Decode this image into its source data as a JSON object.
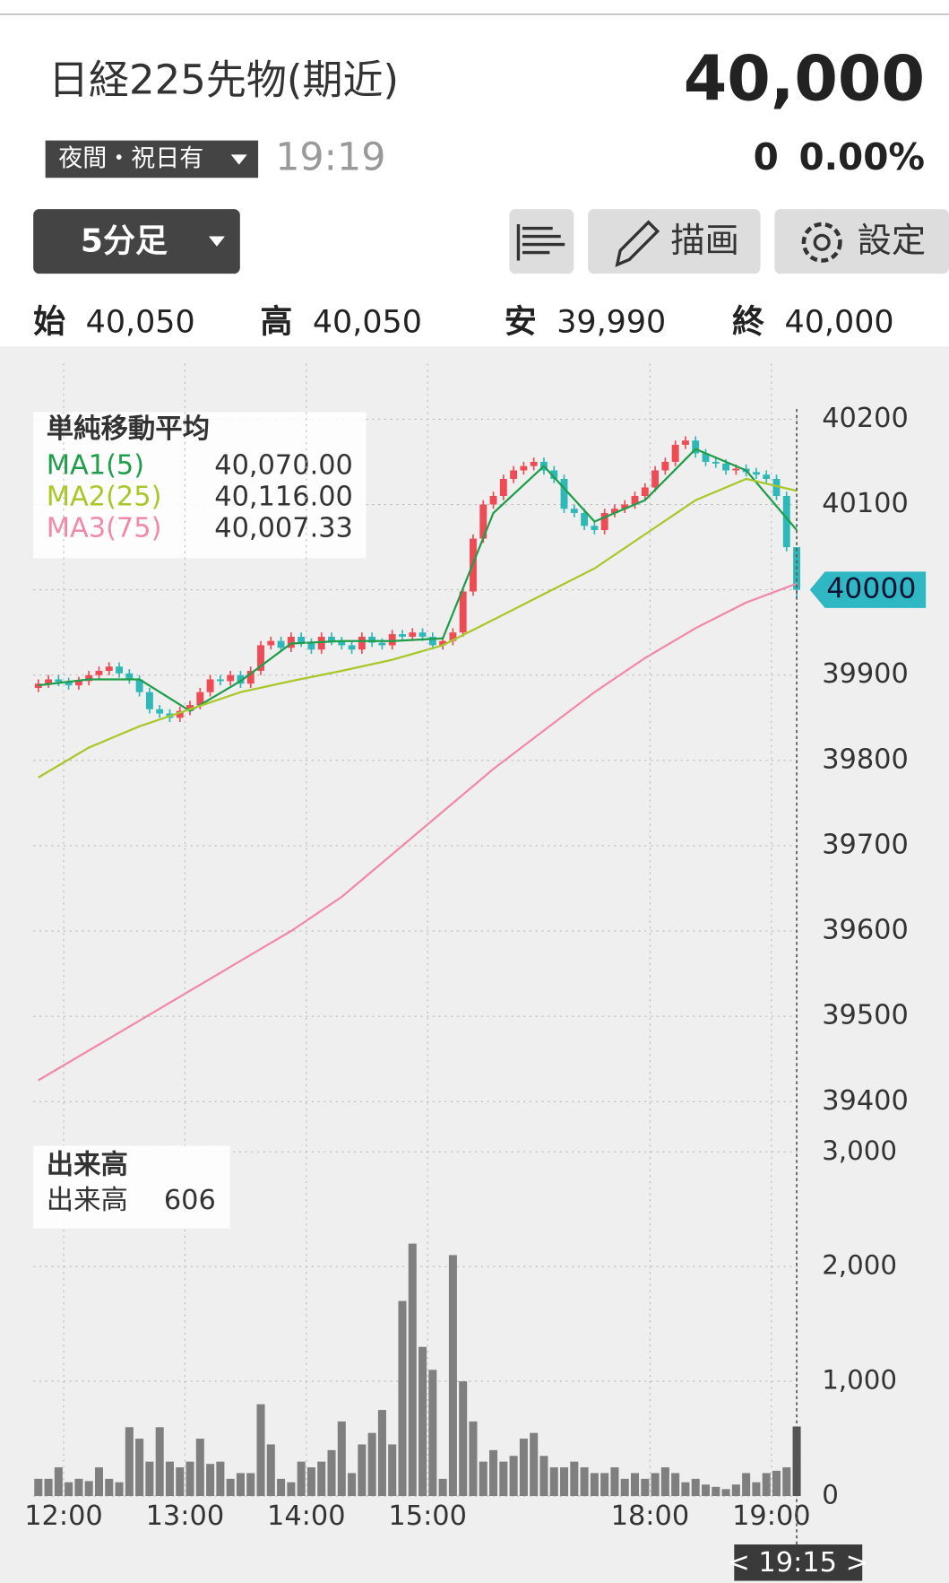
{
  "header": {
    "title": "日経225先物(期近)",
    "price": "40,000",
    "session": "夜間・祝日有",
    "time": "19:19",
    "change": "0",
    "change_pct": "0.00%",
    "interval": "5分足",
    "draw_button": "描画",
    "settings_button": "設定",
    "ohlc": [
      {
        "label": "始",
        "value": "40,050"
      },
      {
        "label": "高",
        "value": "40,050"
      },
      {
        "label": "安",
        "value": "39,990"
      },
      {
        "label": "終",
        "value": "40,000"
      }
    ]
  },
  "legend": {
    "title": "単純移動平均",
    "items": [
      "40,070.00",
      "40,116.00",
      "40,007.33"
    ]
  },
  "volume_legend": {
    "title": "出来高",
    "name": "出来高"
  },
  "cursor_label": "< 19:15 >",
  "chart_data": [
    {
      "type": "candlestick",
      "up_color": "#ee4b55",
      "down_color": "#2fb8b8",
      "open": [
        39885,
        39890,
        39895,
        39892,
        39888,
        39893,
        39900,
        39905,
        39910,
        39902,
        39895,
        39880,
        39860,
        39855,
        39850,
        39858,
        39865,
        39880,
        39895,
        39893,
        39900,
        39890,
        39905,
        39935,
        39940,
        39932,
        39945,
        39938,
        39930,
        39945,
        39940,
        39935,
        39930,
        39945,
        39938,
        39935,
        39948,
        39945,
        39950,
        39945,
        39935,
        39940,
        39950,
        39998,
        40060,
        40100,
        40110,
        40130,
        40140,
        40145,
        40150,
        40140,
        40130,
        40095,
        40090,
        40075,
        40070,
        40090,
        40095,
        40100,
        40110,
        40120,
        40140,
        40150,
        40170,
        40175,
        40160,
        40150,
        40148,
        40140,
        40142,
        40138,
        40135,
        40130,
        40110,
        40050
      ],
      "high": [
        39895,
        39900,
        39900,
        39897,
        39898,
        39905,
        39910,
        39915,
        39915,
        39907,
        39900,
        39885,
        39865,
        39860,
        39863,
        39870,
        39885,
        39900,
        39900,
        39905,
        39905,
        39910,
        39940,
        39945,
        39945,
        39950,
        39950,
        39943,
        39950,
        39950,
        39945,
        39940,
        39950,
        39950,
        39943,
        39953,
        39953,
        39955,
        39955,
        39950,
        39945,
        39955,
        40003,
        40065,
        40105,
        40115,
        40135,
        40145,
        40150,
        40155,
        40155,
        40145,
        40135,
        40100,
        40095,
        40080,
        40095,
        40100,
        40105,
        40115,
        40125,
        40145,
        40155,
        40175,
        40180,
        40180,
        40165,
        40155,
        40153,
        40147,
        40147,
        40143,
        40140,
        40135,
        40115,
        40050
      ],
      "low": [
        39880,
        39885,
        39887,
        39883,
        39883,
        39888,
        39895,
        39900,
        39897,
        39890,
        39875,
        39855,
        39850,
        39845,
        39845,
        39853,
        39860,
        39875,
        39888,
        39888,
        39885,
        39885,
        39900,
        39930,
        39927,
        39927,
        39933,
        39925,
        39925,
        39935,
        39930,
        39925,
        39925,
        39933,
        39930,
        39930,
        39940,
        39940,
        39940,
        39930,
        39930,
        39935,
        39945,
        39993,
        40055,
        40095,
        40105,
        40125,
        40135,
        40140,
        40135,
        40125,
        40090,
        40085,
        40070,
        40065,
        40065,
        40085,
        40090,
        40095,
        40105,
        40115,
        40135,
        40145,
        40165,
        40155,
        40145,
        40143,
        40135,
        40135,
        40133,
        40130,
        40125,
        40105,
        40045,
        39990
      ],
      "close": [
        39890,
        39895,
        39892,
        39888,
        39893,
        39900,
        39905,
        39910,
        39902,
        39895,
        39880,
        39860,
        39855,
        39850,
        39858,
        39865,
        39880,
        39895,
        39893,
        39900,
        39890,
        39905,
        39935,
        39940,
        39932,
        39945,
        39938,
        39930,
        39945,
        39940,
        39935,
        39930,
        39945,
        39938,
        39935,
        39948,
        39945,
        39950,
        39945,
        39935,
        39940,
        39950,
        39998,
        40060,
        40100,
        40110,
        40130,
        40140,
        40145,
        40150,
        40140,
        40130,
        40095,
        40090,
        40075,
        40070,
        40090,
        40095,
        40100,
        40110,
        40120,
        40140,
        40150,
        40170,
        40175,
        40160,
        40150,
        40148,
        40140,
        40142,
        40138,
        40135,
        40130,
        40110,
        40050,
        40000
      ],
      "series": [
        {
          "name": "MA1(5)",
          "color": "#1f9e4a",
          "x": [
            0,
            5,
            10,
            15,
            20,
            25,
            30,
            35,
            40,
            45,
            50,
            55,
            60,
            65,
            70,
            75
          ],
          "values": [
            39888,
            39895,
            39895,
            39858,
            39893,
            39937,
            39940,
            39940,
            39943,
            40090,
            40145,
            40080,
            40105,
            40165,
            40140,
            40070
          ]
        },
        {
          "name": "MA2(25)",
          "color": "#a8c82a",
          "x": [
            0,
            5,
            10,
            15,
            20,
            25,
            30,
            35,
            40,
            45,
            50,
            55,
            60,
            65,
            70,
            75
          ],
          "values": [
            39780,
            39815,
            39840,
            39860,
            39880,
            39893,
            39905,
            39918,
            39935,
            39965,
            39995,
            40025,
            40065,
            40105,
            40130,
            40116
          ]
        },
        {
          "name": "MA3(75)",
          "color": "#f08aa8",
          "x": [
            0,
            5,
            10,
            15,
            20,
            25,
            30,
            35,
            40,
            45,
            50,
            55,
            60,
            65,
            70,
            75
          ],
          "values": [
            39425,
            39460,
            39495,
            39530,
            39565,
            39600,
            39640,
            39690,
            39740,
            39790,
            39835,
            39880,
            39920,
            39955,
            39985,
            40007.33
          ]
        }
      ],
      "ylim": [
        39366,
        40212
      ],
      "yticks": [
        39400,
        39500,
        39600,
        39700,
        39800,
        39900,
        40000,
        40100,
        40200
      ],
      "grid": true
    },
    {
      "type": "bar",
      "color": "#7f7f7f",
      "categories": [
        null,
        null,
        null,
        "12:00",
        null,
        null,
        null,
        null,
        null,
        null,
        null,
        null,
        null,
        null,
        null,
        "13:00",
        null,
        null,
        null,
        null,
        null,
        null,
        null,
        null,
        null,
        null,
        null,
        "14:00",
        null,
        null,
        null,
        null,
        null,
        null,
        null,
        null,
        null,
        null,
        null,
        "15:00",
        null,
        null,
        null,
        null,
        null,
        null,
        null,
        null,
        null,
        null,
        null,
        null,
        null,
        null,
        null,
        null,
        null,
        null,
        null,
        null,
        null,
        "18:00",
        null,
        null,
        null,
        null,
        null,
        null,
        null,
        null,
        null,
        null,
        null,
        "19:00",
        null,
        null
      ],
      "values": [
        150,
        150,
        250,
        120,
        150,
        130,
        250,
        150,
        120,
        600,
        500,
        300,
        600,
        300,
        250,
        300,
        500,
        280,
        300,
        150,
        200,
        200,
        800,
        450,
        150,
        120,
        300,
        250,
        300,
        400,
        650,
        200,
        450,
        550,
        750,
        450,
        1700,
        2200,
        1300,
        1100,
        150,
        2100,
        1000,
        650,
        300,
        400,
        300,
        350,
        500,
        550,
        350,
        250,
        250,
        300,
        250,
        200,
        200,
        250,
        150,
        200,
        150,
        200,
        250,
        200,
        120,
        150,
        100,
        80,
        60,
        100,
        200,
        120,
        200,
        220,
        250,
        606
      ],
      "ylim": [
        0,
        3000
      ],
      "yticks": [
        0,
        {
          "value": 1000,
          "label": "1,000"
        },
        {
          "value": 2000,
          "label": "2,000"
        },
        {
          "value": 3000,
          "label": "3,000"
        }
      ],
      "grid": true
    }
  ]
}
